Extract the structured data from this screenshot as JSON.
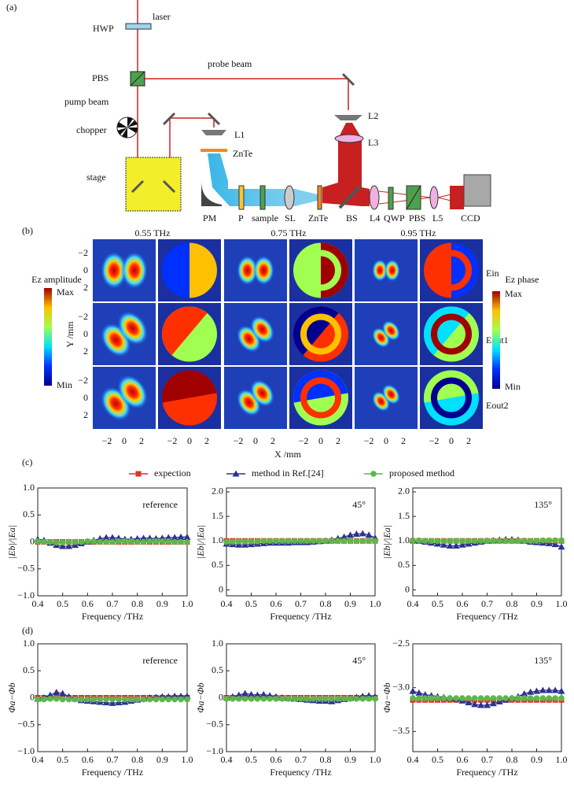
{
  "panel_labels": [
    "(a)",
    "(b)",
    "(c)",
    "(d)"
  ],
  "panel_a": {
    "labels": [
      "laser",
      "HWP",
      "PBS",
      "probe beam",
      "pump beam",
      "chopper",
      "stage",
      "L1",
      "ZnTe",
      "L2",
      "L3",
      "PM",
      "P",
      "sample",
      "SL",
      "ZnTe",
      "BS",
      "L4",
      "QWP",
      "PBS",
      "L5",
      "CCD"
    ]
  },
  "panel_b": {
    "frequencies": [
      "0.55 THz",
      "0.75 THz",
      "0.95 THz"
    ],
    "rows": [
      "Ein",
      "Eout1",
      "Eout2"
    ],
    "amplitude_bar": {
      "title": "Ez amplitude",
      "max": "Max",
      "min": "Min"
    },
    "phase_bar": {
      "title": "Ez phase",
      "max": "Max",
      "min": "Min"
    },
    "y_label": "Y /mm",
    "x_label": "X /mm",
    "y_ticks": [
      "−2",
      "0",
      "2"
    ],
    "x_ticks": [
      "−2",
      "0",
      "2"
    ]
  },
  "legend": {
    "items": [
      {
        "name": "expection",
        "color": "#e0312a",
        "marker": "square"
      },
      {
        "name": "method in Ref.[24]",
        "color": "#2e3192",
        "marker": "triangle"
      },
      {
        "name": "proposed method",
        "color": "#5cb848",
        "marker": "circle"
      }
    ]
  },
  "chart_data": [
    {
      "type": "line",
      "annotation": "reference",
      "x_label": "Frequency /THz",
      "y_label": "|Eb|/|Ea|",
      "x": [
        0.4,
        0.425,
        0.45,
        0.475,
        0.5,
        0.525,
        0.55,
        0.575,
        0.6,
        0.625,
        0.65,
        0.675,
        0.7,
        0.725,
        0.75,
        0.775,
        0.8,
        0.825,
        0.85,
        0.875,
        0.9,
        0.925,
        0.95,
        0.975,
        1.0
      ],
      "xlim": [
        0.4,
        1.0
      ],
      "xticks": [
        0.4,
        0.5,
        0.6,
        0.7,
        0.8,
        0.9,
        {
          "value": 1.0,
          "label": "1.0"
        }
      ],
      "ylim": [
        -1,
        1
      ],
      "yticks": [
        {
          "value": -1,
          "label": "−1.0"
        },
        {
          "value": -0.5,
          "label": "−0.5"
        },
        0,
        0.5,
        {
          "value": 1,
          "label": "1.0"
        }
      ],
      "series": [
        {
          "color": "#e0312a",
          "marker": "square",
          "dashed": true,
          "values": [
            0,
            0,
            0,
            0,
            0,
            0,
            0,
            0,
            0,
            0,
            0,
            0,
            0,
            0,
            0,
            0,
            0,
            0,
            0,
            0,
            0,
            0,
            0,
            0,
            0
          ]
        },
        {
          "color": "#2e3192",
          "marker": "triangle",
          "values": [
            0.05,
            0.03,
            -0.02,
            -0.06,
            -0.08,
            -0.08,
            -0.06,
            -0.03,
            0.0,
            0.03,
            0.06,
            0.08,
            0.08,
            0.07,
            0.05,
            0.05,
            0.06,
            0.07,
            0.07,
            0.06,
            0.07,
            0.08,
            0.08,
            0.09,
            0.09
          ]
        },
        {
          "color": "#5cb848",
          "marker": "circle",
          "values": [
            0.01,
            0.0,
            0.0,
            -0.01,
            -0.01,
            0.0,
            0.0,
            0.0,
            0.01,
            0.01,
            0.0,
            0.0,
            0.0,
            0.01,
            0.01,
            0.01,
            0.0,
            0.0,
            0.01,
            0.01,
            0.01,
            0.01,
            0.0,
            0.0,
            0.0
          ]
        }
      ]
    },
    {
      "type": "line",
      "annotation": "45°",
      "x_label": "Frequency /THz",
      "y_label": "|Eb|/|Ea|",
      "x": [
        0.4,
        0.425,
        0.45,
        0.475,
        0.5,
        0.525,
        0.55,
        0.575,
        0.6,
        0.625,
        0.65,
        0.675,
        0.7,
        0.725,
        0.75,
        0.775,
        0.8,
        0.825,
        0.85,
        0.875,
        0.9,
        0.925,
        0.95,
        0.975,
        1.0
      ],
      "xlim": [
        0.4,
        1.0
      ],
      "xticks": [
        0.4,
        0.5,
        0.6,
        0.7,
        0.8,
        0.9,
        {
          "value": 1.0,
          "label": "1.0"
        }
      ],
      "ylim": [
        -0.12,
        2.08
      ],
      "yticks": [
        0,
        0.5,
        {
          "value": 1,
          "label": "1.0"
        },
        1.5,
        {
          "value": 2,
          "label": "2.0"
        }
      ],
      "series": [
        {
          "color": "#e0312a",
          "marker": "square",
          "dashed": true,
          "values": [
            1,
            1,
            1,
            1,
            1,
            1,
            1,
            1,
            1,
            1,
            1,
            1,
            1,
            1,
            1,
            1,
            1,
            1,
            1,
            1,
            1,
            1,
            1,
            1,
            1
          ]
        },
        {
          "color": "#2e3192",
          "marker": "triangle",
          "values": [
            0.94,
            0.93,
            0.92,
            0.92,
            0.93,
            0.94,
            0.95,
            0.96,
            0.96,
            0.96,
            0.96,
            0.97,
            0.97,
            0.97,
            0.98,
            0.99,
            1.0,
            1.02,
            1.05,
            1.08,
            1.12,
            1.14,
            1.15,
            1.12,
            1.06
          ]
        },
        {
          "color": "#5cb848",
          "marker": "circle",
          "values": [
            0.98,
            0.98,
            0.99,
            0.99,
            0.99,
            0.99,
            1.0,
            1.0,
            1.0,
            1.0,
            1.0,
            1.0,
            1.0,
            1.0,
            1.0,
            1.0,
            1.0,
            1.0,
            1.0,
            1.0,
            1.0,
            1.0,
            1.0,
            1.0,
            1.0
          ]
        }
      ]
    },
    {
      "type": "line",
      "annotation": "135°",
      "x_label": "Frequency /THz",
      "y_label": "|Eb|/|Ea|",
      "x": [
        0.4,
        0.425,
        0.45,
        0.475,
        0.5,
        0.525,
        0.55,
        0.575,
        0.6,
        0.625,
        0.65,
        0.675,
        0.7,
        0.725,
        0.75,
        0.775,
        0.8,
        0.825,
        0.85,
        0.875,
        0.9,
        0.925,
        0.95,
        0.975,
        1.0
      ],
      "xlim": [
        0.4,
        1.0
      ],
      "xticks": [
        0.4,
        0.5,
        0.6,
        0.7,
        0.8,
        0.9,
        {
          "value": 1.0,
          "label": "1.0"
        }
      ],
      "ylim": [
        -0.12,
        2.08
      ],
      "yticks": [
        0,
        0.5,
        {
          "value": 1,
          "label": "1.0"
        },
        1.5,
        {
          "value": 2,
          "label": "2.0"
        }
      ],
      "series": [
        {
          "color": "#e0312a",
          "marker": "square",
          "dashed": true,
          "values": [
            1,
            1,
            1,
            1,
            1,
            1,
            1,
            1,
            1,
            1,
            1,
            1,
            1,
            1,
            1,
            1,
            1,
            1,
            1,
            1,
            1,
            1,
            1,
            1,
            1
          ]
        },
        {
          "color": "#2e3192",
          "marker": "triangle",
          "values": [
            1.02,
            1.0,
            0.98,
            0.96,
            0.94,
            0.92,
            0.9,
            0.9,
            0.92,
            0.94,
            0.96,
            0.98,
            1.0,
            1.01,
            1.02,
            1.03,
            1.03,
            1.02,
            1.0,
            0.98,
            0.97,
            0.96,
            0.95,
            0.93,
            0.88
          ]
        },
        {
          "color": "#5cb848",
          "marker": "circle",
          "values": [
            1.01,
            1.01,
            1.0,
            1.0,
            1.0,
            1.0,
            1.0,
            1.0,
            1.0,
            1.0,
            1.0,
            1.0,
            1.0,
            1.0,
            1.0,
            1.0,
            1.0,
            1.0,
            1.0,
            1.0,
            1.0,
            1.01,
            1.01,
            1.01,
            1.01
          ]
        }
      ]
    },
    {
      "type": "line",
      "annotation": "reference",
      "x_label": "Frequency /THz",
      "y_label": "Φa−Φb",
      "x": [
        0.4,
        0.425,
        0.45,
        0.475,
        0.5,
        0.525,
        0.55,
        0.575,
        0.6,
        0.625,
        0.65,
        0.675,
        0.7,
        0.725,
        0.75,
        0.775,
        0.8,
        0.825,
        0.85,
        0.875,
        0.9,
        0.925,
        0.95,
        0.975,
        1.0
      ],
      "xlim": [
        0.4,
        1.0
      ],
      "xticks": [
        0.4,
        0.5,
        0.6,
        0.7,
        0.8,
        0.9,
        {
          "value": 1.0,
          "label": "1.0"
        }
      ],
      "ylim": [
        -1,
        1
      ],
      "yticks": [
        {
          "value": -1,
          "label": "−1.0"
        },
        {
          "value": -0.5,
          "label": "−0.5"
        },
        0,
        0.5,
        {
          "value": 1,
          "label": "1.0"
        }
      ],
      "series": [
        {
          "color": "#e0312a",
          "marker": "square",
          "dashed": true,
          "values": [
            0,
            0,
            0,
            0,
            0,
            0,
            0,
            0,
            0,
            0,
            0,
            0,
            0,
            0,
            0,
            0,
            0,
            0,
            0,
            0,
            0,
            0,
            0,
            0,
            0
          ]
        },
        {
          "color": "#2e3192",
          "marker": "triangle",
          "values": [
            -0.02,
            0.0,
            0.05,
            0.1,
            0.08,
            0.02,
            -0.02,
            -0.05,
            -0.06,
            -0.07,
            -0.08,
            -0.09,
            -0.1,
            -0.09,
            -0.08,
            -0.06,
            -0.04,
            -0.02,
            0.0,
            0.01,
            0.02,
            0.02,
            0.03,
            0.03,
            0.03
          ]
        },
        {
          "color": "#5cb848",
          "marker": "circle",
          "values": [
            -0.03,
            -0.03,
            -0.02,
            -0.02,
            -0.03,
            -0.03,
            -0.03,
            -0.03,
            -0.03,
            -0.03,
            -0.03,
            -0.03,
            -0.03,
            -0.03,
            -0.03,
            -0.03,
            -0.03,
            -0.03,
            -0.03,
            -0.03,
            -0.03,
            -0.03,
            -0.03,
            -0.03,
            -0.03
          ]
        }
      ]
    },
    {
      "type": "line",
      "annotation": "45°",
      "x_label": "Frequency /THz",
      "y_label": "Φa−Φb",
      "x": [
        0.4,
        0.425,
        0.45,
        0.475,
        0.5,
        0.525,
        0.55,
        0.575,
        0.6,
        0.625,
        0.65,
        0.675,
        0.7,
        0.725,
        0.75,
        0.775,
        0.8,
        0.825,
        0.85,
        0.875,
        0.9,
        0.925,
        0.95,
        0.975,
        1.0
      ],
      "xlim": [
        0.4,
        1.0
      ],
      "xticks": [
        0.4,
        0.5,
        0.6,
        0.7,
        0.8,
        0.9,
        {
          "value": 1.0,
          "label": "1.0"
        }
      ],
      "ylim": [
        -1,
        1
      ],
      "yticks": [
        {
          "value": -1,
          "label": "−1.0"
        },
        {
          "value": -0.5,
          "label": "−0.5"
        },
        0,
        0.5,
        {
          "value": 1,
          "label": "1.0"
        }
      ],
      "series": [
        {
          "color": "#e0312a",
          "marker": "square",
          "dashed": true,
          "values": [
            0,
            0,
            0,
            0,
            0,
            0,
            0,
            0,
            0,
            0,
            0,
            0,
            0,
            0,
            0,
            0,
            0,
            0,
            0,
            0,
            0,
            0,
            0,
            0,
            0
          ]
        },
        {
          "color": "#2e3192",
          "marker": "triangle",
          "values": [
            0.0,
            0.02,
            0.05,
            0.08,
            0.06,
            0.05,
            0.06,
            0.04,
            0.02,
            0.0,
            -0.01,
            -0.02,
            -0.03,
            -0.04,
            -0.05,
            -0.06,
            -0.06,
            -0.07,
            -0.05,
            -0.03,
            -0.01,
            0.01,
            0.03,
            0.04,
            0.02
          ]
        },
        {
          "color": "#5cb848",
          "marker": "circle",
          "values": [
            -0.02,
            -0.02,
            -0.02,
            -0.02,
            -0.02,
            -0.02,
            -0.02,
            -0.02,
            -0.02,
            -0.02,
            -0.02,
            -0.02,
            -0.02,
            -0.02,
            -0.02,
            -0.02,
            -0.02,
            -0.02,
            -0.02,
            -0.02,
            -0.02,
            -0.02,
            -0.02,
            -0.02,
            -0.02
          ]
        }
      ]
    },
    {
      "type": "line",
      "annotation": "135°",
      "x_label": "Frequency /THz",
      "y_label": "Φa−Φb",
      "x": [
        0.4,
        0.425,
        0.45,
        0.475,
        0.5,
        0.525,
        0.55,
        0.575,
        0.6,
        0.625,
        0.65,
        0.675,
        0.7,
        0.725,
        0.75,
        0.775,
        0.8,
        0.825,
        0.85,
        0.875,
        0.9,
        0.925,
        0.95,
        0.975,
        1.0
      ],
      "xlim": [
        0.4,
        1.0
      ],
      "xticks": [
        0.4,
        0.5,
        0.6,
        0.7,
        0.8,
        0.9,
        {
          "value": 1.0,
          "label": "1.0"
        }
      ],
      "ylim": [
        -3.73,
        -2.5
      ],
      "yticks": [
        {
          "value": -3.5,
          "label": "−3.5"
        },
        {
          "value": -3,
          "label": "−3.0"
        },
        {
          "value": -2.5,
          "label": "−2.5"
        }
      ],
      "series": [
        {
          "color": "#e0312a",
          "marker": "square",
          "dashed": true,
          "values": [
            -3.14,
            -3.14,
            -3.14,
            -3.14,
            -3.14,
            -3.14,
            -3.14,
            -3.14,
            -3.14,
            -3.14,
            -3.14,
            -3.14,
            -3.14,
            -3.14,
            -3.14,
            -3.14,
            -3.14,
            -3.14,
            -3.14,
            -3.14,
            -3.14,
            -3.14,
            -3.14,
            -3.14,
            -3.14
          ]
        },
        {
          "color": "#2e3192",
          "marker": "triangle",
          "values": [
            -3.04,
            -3.06,
            -3.08,
            -3.09,
            -3.1,
            -3.11,
            -3.12,
            -3.13,
            -3.15,
            -3.17,
            -3.19,
            -3.2,
            -3.2,
            -3.18,
            -3.16,
            -3.14,
            -3.12,
            -3.1,
            -3.07,
            -3.05,
            -3.04,
            -3.03,
            -3.03,
            -3.03,
            -3.04
          ]
        },
        {
          "color": "#5cb848",
          "marker": "circle",
          "values": [
            -3.12,
            -3.12,
            -3.12,
            -3.12,
            -3.12,
            -3.12,
            -3.12,
            -3.12,
            -3.12,
            -3.12,
            -3.12,
            -3.12,
            -3.12,
            -3.12,
            -3.12,
            -3.12,
            -3.12,
            -3.12,
            -3.12,
            -3.12,
            -3.12,
            -3.12,
            -3.12,
            -3.12,
            -3.12
          ]
        }
      ]
    }
  ]
}
